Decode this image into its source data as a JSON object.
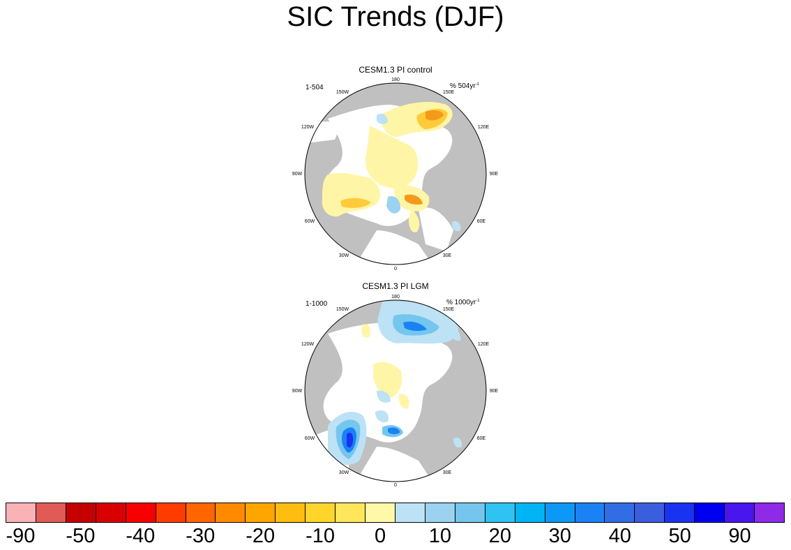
{
  "title": "SIC Trends (DJF)",
  "panels": [
    {
      "subtitle": "CESM1.3 PI control",
      "left_label": "1-504",
      "units_prefix": "% 504yr",
      "units_sup": "-1"
    },
    {
      "subtitle": "CESM1.3 PI LGM",
      "left_label": "1-1000",
      "units_prefix": "% 1000yr",
      "units_sup": "-1"
    }
  ],
  "longitudes": {
    "top": "180",
    "upper_left": "150W",
    "upper_right": "150E",
    "mid_upper_left": "120W",
    "mid_upper_right": "120E",
    "left": "90W",
    "right": "90E",
    "mid_lower_left": "60W",
    "mid_lower_right": "60E",
    "lower_left": "30W",
    "lower_right": "30E",
    "bottom": "0"
  },
  "colorbar": {
    "colors": [
      "#f9b2b6",
      "#e25a55",
      "#c40000",
      "#d80000",
      "#f60000",
      "#ff3c00",
      "#ff6600",
      "#ff8a00",
      "#ffa500",
      "#ffbd10",
      "#ffd52c",
      "#ffe65a",
      "#fff8a8",
      "#bde2f5",
      "#9bd2ef",
      "#74c6ef",
      "#2ec3f3",
      "#00b4f6",
      "#0e98f6",
      "#1a82f4",
      "#316ee6",
      "#3a5ede",
      "#1933f0",
      "#0000f0",
      "#4a16ee",
      "#8e2ae8"
    ],
    "labels": [
      "-90",
      "-50",
      "-40",
      "-30",
      "-20",
      "-10",
      "0",
      "10",
      "20",
      "30",
      "40",
      "50",
      "90"
    ]
  },
  "colors": {
    "land": "#c0c0c0",
    "ocean_white": "#ffffff",
    "yellow": "#fff5a6",
    "orange": "#ffcb3a",
    "dark_orange": "#f39a1a",
    "light_blue": "#bde2f5",
    "mid_blue": "#74c6ef",
    "blue": "#1a82f4",
    "dark_blue": "#1933f0"
  }
}
